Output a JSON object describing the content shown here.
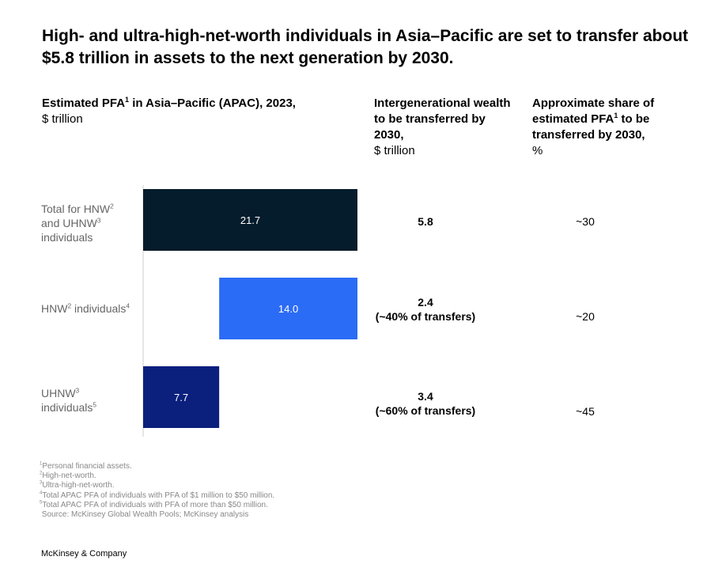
{
  "title": "High- and ultra-high-net-worth individuals in Asia–Pacific are set to transfer about $5.8 trillion in assets to the next generation by 2030.",
  "columns": {
    "col1": {
      "bold": "Estimated PFA",
      "sup": "1",
      "bold2": " in Asia–Pacific (APAC), 2023,",
      "unit": " $ trillion"
    },
    "col2": {
      "bold": "Intergenerational wealth to be transferred by 2030,",
      "unit": "$ trillion"
    },
    "col3": {
      "bold": "Approximate share of estimated PFA",
      "sup": "1",
      "bold2": " to be transferred by 2030,",
      "unit": "%"
    }
  },
  "rows": [
    {
      "label_parts": [
        "Total for HNW",
        "2",
        " and UHNW",
        "3",
        " individuals"
      ],
      "transfer": "5.8",
      "transfer_note": "",
      "share": "~30"
    },
    {
      "label_parts": [
        "HNW",
        "2",
        " individuals",
        "4",
        ""
      ],
      "transfer": "2.4",
      "transfer_note": "(~40% of transfers)",
      "share": "~20"
    },
    {
      "label_parts": [
        "UHNW",
        "3",
        " individuals",
        "5",
        ""
      ],
      "transfer": "3.4",
      "transfer_note": "(~60% of transfers)",
      "share": "~45"
    }
  ],
  "chart_data": {
    "type": "bar",
    "orientation": "horizontal-waterfall",
    "categories": [
      "Total for HNW and UHNW individuals",
      "HNW individuals",
      "UHNW individuals"
    ],
    "values": [
      21.7,
      14.0,
      7.7
    ],
    "value_labels": [
      "21.7",
      "14.0",
      "7.7"
    ],
    "offsets": [
      0,
      7.7,
      0
    ],
    "colors": [
      "#051c2c",
      "#2b6cf6",
      "#0b1f7d"
    ],
    "xlim": [
      0,
      21.7
    ]
  },
  "footnotes": [
    {
      "sup": "1",
      "text": "Personal financial assets."
    },
    {
      "sup": "2",
      "text": "High-net-worth."
    },
    {
      "sup": "3",
      "text": "Ultra-high-net-worth."
    },
    {
      "sup": "4",
      "text": "Total APAC PFA of individuals with PFA of $1 million to $50 million."
    },
    {
      "sup": "5",
      "text": "Total APAC PFA of individuals with PFA of more than $50 million."
    },
    {
      "sup": "",
      "text": " Source: McKinsey Global Wealth Pools; McKinsey analysis"
    }
  ],
  "brand": "McKinsey & Company"
}
